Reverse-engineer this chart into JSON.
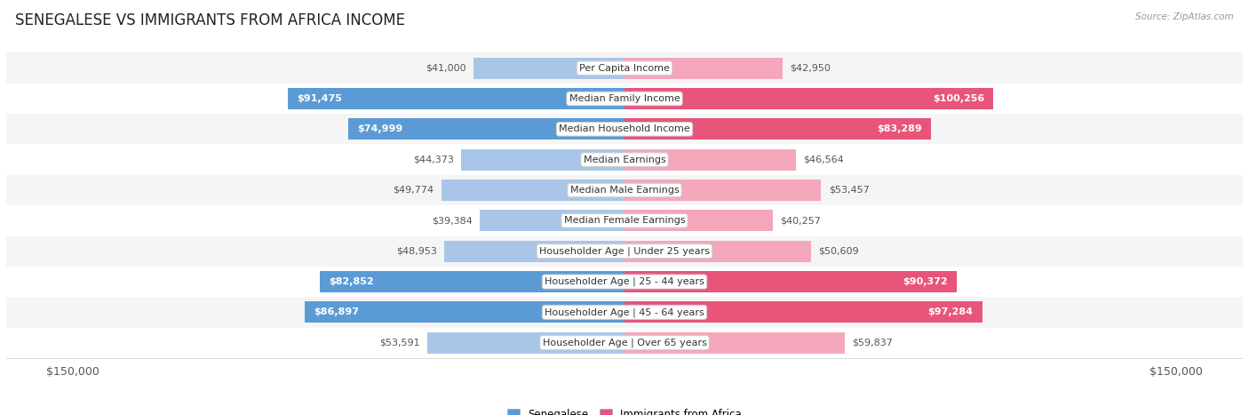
{
  "title": "SENEGALESE VS IMMIGRANTS FROM AFRICA INCOME",
  "source": "Source: ZipAtlas.com",
  "categories": [
    "Per Capita Income",
    "Median Family Income",
    "Median Household Income",
    "Median Earnings",
    "Median Male Earnings",
    "Median Female Earnings",
    "Householder Age | Under 25 years",
    "Householder Age | 25 - 44 years",
    "Householder Age | 45 - 64 years",
    "Householder Age | Over 65 years"
  ],
  "senegalese_values": [
    41000,
    91475,
    74999,
    44373,
    49774,
    39384,
    48953,
    82852,
    86897,
    53591
  ],
  "immigrant_values": [
    42950,
    100256,
    83289,
    46564,
    53457,
    40257,
    50609,
    90372,
    97284,
    59837
  ],
  "senegalese_labels": [
    "$41,000",
    "$91,475",
    "$74,999",
    "$44,373",
    "$49,774",
    "$39,384",
    "$48,953",
    "$82,852",
    "$86,897",
    "$53,591"
  ],
  "immigrant_labels": [
    "$42,950",
    "$100,256",
    "$83,289",
    "$46,564",
    "$53,457",
    "$40,257",
    "$50,609",
    "$90,372",
    "$97,284",
    "$59,837"
  ],
  "max_value": 150000,
  "senegalese_color_strong": "#5b9bd5",
  "senegalese_color_light": "#a9c6e8",
  "immigrant_color_strong": "#e8547a",
  "immigrant_color_light": "#f4a7bb",
  "legend_senegalese": "Senegalese",
  "legend_immigrant": "Immigrants from Africa",
  "row_bg_even": "#f5f5f5",
  "row_bg_odd": "#ffffff",
  "background_color": "#ffffff",
  "title_fontsize": 12,
  "label_fontsize": 8,
  "category_fontsize": 8,
  "axis_label_fontsize": 9,
  "strong_threshold": 60000,
  "label_inside_threshold": 60000
}
